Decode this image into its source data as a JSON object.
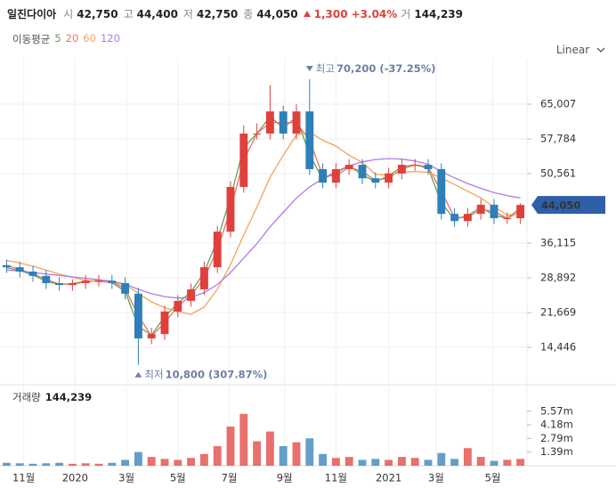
{
  "header": {
    "name": "일진다이아",
    "items": [
      {
        "label": "시",
        "value": "42,750"
      },
      {
        "label": "고",
        "value": "44,400"
      },
      {
        "label": "저",
        "value": "42,750"
      },
      {
        "label": "종",
        "value": "44,050"
      }
    ],
    "change": "1,300",
    "change_pct": "+3.04%",
    "volume_label": "거",
    "volume": "144,239"
  },
  "chart_data": {
    "type": "candlestick",
    "scale": "Linear",
    "grid": true,
    "up_color": "#e0403c",
    "down_color": "#2f7fb8",
    "xlim": [
      0,
      40
    ],
    "xticks": [
      {
        "value": 1.8,
        "label": "11월"
      },
      {
        "value": 5.7,
        "label": "2020"
      },
      {
        "value": 9.6,
        "label": "3월"
      },
      {
        "value": 13.5,
        "label": "5월"
      },
      {
        "value": 17.4,
        "label": "7월"
      },
      {
        "value": 21.6,
        "label": "9월"
      },
      {
        "value": 25.5,
        "label": "11월"
      },
      {
        "value": 29.5,
        "label": "2021"
      },
      {
        "value": 33.1,
        "label": "3월"
      },
      {
        "value": 37.4,
        "label": "5월"
      }
    ],
    "ylim": [
      7047,
      74637
    ],
    "yticks": [
      {
        "value": 65007,
        "label": "65,007"
      },
      {
        "value": 57784,
        "label": "57,784"
      },
      {
        "value": 50561,
        "label": "50,561"
      },
      {
        "value": 36115,
        "label": "36,115"
      },
      {
        "value": 28892,
        "label": "28,892"
      },
      {
        "value": 21669,
        "label": "21,669"
      },
      {
        "value": 14446,
        "label": "14,446"
      }
    ],
    "open": [
      31500,
      31100,
      30200,
      29300,
      27800,
      27400,
      27800,
      28300,
      28300,
      27800,
      25600,
      16300,
      17200,
      21900,
      24100,
      26500,
      31100,
      38500,
      47800,
      58900,
      58900,
      63500,
      58900,
      63500,
      51500,
      48700,
      51500,
      52400,
      49600,
      48700,
      50600,
      52400,
      52400,
      51500,
      42200,
      40700,
      42200,
      44100,
      41300,
      41300
    ],
    "high": [
      32700,
      32300,
      31400,
      30500,
      29000,
      28600,
      29500,
      29500,
      29500,
      29000,
      26800,
      18500,
      23100,
      25300,
      27700,
      32300,
      39700,
      49000,
      60600,
      61000,
      69000,
      64700,
      65000,
      70200,
      52700,
      52700,
      53600,
      53600,
      50800,
      51800,
      53600,
      53600,
      53600,
      52700,
      43400,
      43400,
      45300,
      45300,
      42500,
      44400
    ],
    "low": [
      29900,
      29000,
      28100,
      26600,
      26200,
      26200,
      26600,
      27100,
      26600,
      24400,
      10800,
      15100,
      16000,
      20700,
      22900,
      25300,
      29900,
      37300,
      46600,
      57700,
      57700,
      57700,
      57700,
      50300,
      47500,
      47500,
      50300,
      48400,
      47500,
      47500,
      49400,
      51200,
      50300,
      41000,
      39500,
      39500,
      41000,
      40100,
      40100,
      40100
    ],
    "close": [
      31100,
      30200,
      29300,
      27800,
      27400,
      27800,
      28300,
      28300,
      27800,
      25600,
      16300,
      17200,
      21900,
      24100,
      26500,
      31100,
      38500,
      47800,
      58900,
      58900,
      63500,
      58900,
      63500,
      51500,
      48700,
      51500,
      52400,
      49600,
      48700,
      50600,
      52400,
      52400,
      51500,
      42200,
      40700,
      42200,
      44100,
      41300,
      41300,
      44050
    ],
    "ma_title": "이동평균",
    "series": [
      {
        "name": "5",
        "color": "#5aa55c",
        "values": [
          31000,
          30400,
          29500,
          28200,
          27500,
          27700,
          28200,
          28300,
          27900,
          26100,
          18800,
          17000,
          20800,
          23600,
          26000,
          30000,
          36800,
          45600,
          56000,
          58900,
          62400,
          60100,
          62300,
          54500,
          49400,
          50800,
          52200,
          50300,
          48900,
          50100,
          52000,
          52400,
          51700,
          44500,
          41100,
          41800,
          43600,
          41900,
          41300,
          43400
        ]
      },
      {
        "name": "20",
        "color": "#ef6f62",
        "values": [
          31500,
          30650,
          29750,
          28550,
          27600,
          27600,
          28050,
          28300,
          28050,
          26700,
          21000,
          16750,
          19550,
          23000,
          25300,
          28800,
          34800,
          43150,
          53350,
          58900,
          61200,
          61200,
          61200,
          57500,
          50100,
          50100,
          51950,
          51000,
          49150,
          49650,
          51500,
          52400,
          51950,
          46850,
          41450,
          41450,
          43150,
          42700,
          41300,
          42700
        ]
      },
      {
        "name": "60",
        "color": "#f5a35a",
        "values": [
          32500,
          32000,
          31300,
          30500,
          29700,
          29000,
          28400,
          28100,
          27900,
          27500,
          25700,
          23900,
          22700,
          21900,
          21300,
          22850,
          26550,
          31650,
          37800,
          43600,
          49800,
          54400,
          58600,
          59200,
          57500,
          56300,
          54400,
          52900,
          50400,
          50250,
          50850,
          51000,
          50850,
          49650,
          48300,
          46900,
          45500,
          43650,
          41950,
          42300
        ]
      },
      {
        "name": "120",
        "color": "#b27be6",
        "values": [
          30500,
          30300,
          30000,
          29700,
          29400,
          29100,
          28800,
          28500,
          28200,
          27600,
          26500,
          25600,
          25000,
          24700,
          24900,
          25800,
          27500,
          30000,
          33000,
          36000,
          39500,
          42500,
          45500,
          47800,
          49500,
          51000,
          52200,
          53000,
          53500,
          53700,
          53600,
          53200,
          52500,
          51000,
          49700,
          48500,
          47500,
          46600,
          46000,
          45500
        ]
      }
    ],
    "last_price": {
      "value": 44050,
      "label": "44,050"
    },
    "annotations": {
      "high": {
        "text": "최고",
        "label": "70,200 (-37.25%)"
      },
      "low": {
        "text": "최저",
        "label": "10,800 (307.87%)"
      }
    },
    "volume": {
      "title": "거래량",
      "ylim": [
        0,
        6190000
      ],
      "yticks": [
        {
          "value": 5570000,
          "label": "5.57m"
        },
        {
          "value": 4180000,
          "label": "4.18m"
        },
        {
          "value": 2790000,
          "label": "2.79m"
        },
        {
          "value": 1390000,
          "label": "1.39m"
        }
      ],
      "values": [
        300000,
        250000,
        200000,
        250000,
        300000,
        200000,
        250000,
        200000,
        300000,
        600000,
        1400000,
        900000,
        700000,
        600000,
        800000,
        1200000,
        2000000,
        4000000,
        5300000,
        2500000,
        3500000,
        2000000,
        2400000,
        2800000,
        1200000,
        800000,
        900000,
        600000,
        700000,
        600000,
        900000,
        800000,
        600000,
        1300000,
        700000,
        1800000,
        900000,
        500000,
        600000,
        700000
      ]
    }
  }
}
